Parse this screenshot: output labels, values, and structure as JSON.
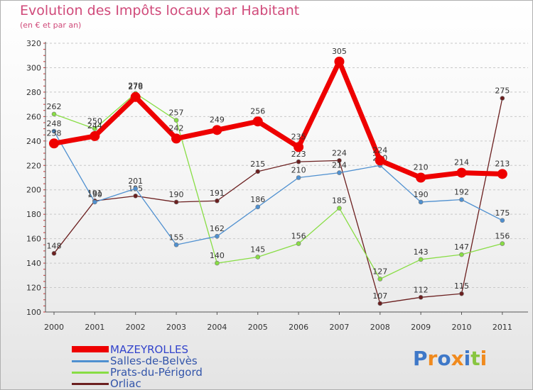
{
  "chart_data": {
    "type": "line",
    "title": "Evolution des Impôts locaux par Habitant",
    "subtitle": "(en € et par an)",
    "xlabel": "",
    "ylabel": "",
    "categories": [
      "2000",
      "2001",
      "2002",
      "2003",
      "2004",
      "2005",
      "2006",
      "2007",
      "2008",
      "2009",
      "2010",
      "2011"
    ],
    "ylim": [
      100,
      320
    ],
    "yticks": [
      100,
      120,
      140,
      160,
      180,
      200,
      220,
      240,
      260,
      280,
      300,
      320
    ],
    "grid": "horizontal dashed",
    "legend_position": "bottom-left",
    "series": [
      {
        "name": "MAZEYROLLES",
        "color": "#ee0000",
        "values": [
          238,
          244,
          276,
          242,
          249,
          256,
          235,
          305,
          224,
          210,
          214,
          213
        ]
      },
      {
        "name": "Salles-de-Belvès",
        "color": "#4f90d0",
        "values": [
          248,
          190,
          201,
          155,
          162,
          186,
          210,
          214,
          220,
          190,
          192,
          175
        ]
      },
      {
        "name": "Prats-du-Périgord",
        "color": "#88dd44",
        "values": [
          262,
          250,
          279,
          257,
          140,
          145,
          156,
          185,
          127,
          143,
          147,
          156
        ]
      },
      {
        "name": "Orliac",
        "color": "#6b1f1f",
        "values": [
          148,
          191,
          195,
          190,
          191,
          215,
          223,
          224,
          107,
          112,
          115,
          275
        ]
      }
    ]
  },
  "logo": {
    "text": "Proxiti",
    "colors": [
      "#3e78c8",
      "#f08a1e",
      "#3e78c8",
      "#f08a1e",
      "#3e78c8",
      "#88c540",
      "#f08a1e"
    ]
  }
}
